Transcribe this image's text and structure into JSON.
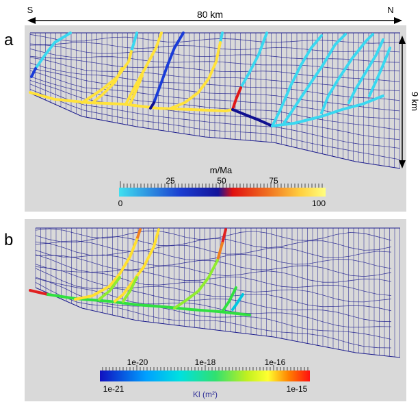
{
  "panels": [
    {
      "letter": "a",
      "colorbar": {
        "title": "m/Ma",
        "major_labels": [
          "25",
          "50",
          "75"
        ],
        "min_label": "0",
        "max_label": "100"
      }
    },
    {
      "letter": "b",
      "colorbar": {
        "title": "Kl (m²)",
        "major_labels": [
          "1e-20",
          "1e-18",
          "1e-16"
        ],
        "min_label": "1e-21",
        "max_label": "1e-15"
      }
    }
  ],
  "header": {
    "south": "S",
    "north": "N",
    "width_label": "80 km"
  },
  "depth_label": "9 km",
  "colors": {
    "background": "#d9d9d9",
    "mesh": "#1a1a8c",
    "rate_scale": [
      "#40e0f0",
      "#1a3cd0",
      "#14149a",
      "#e01010",
      "#f07020",
      "#ffe040",
      "#ffff80"
    ],
    "perm_scale": [
      "#1010c0",
      "#00c0ff",
      "#30e070",
      "#a0f020",
      "#ffff30",
      "#ff8000",
      "#ff1010"
    ]
  }
}
